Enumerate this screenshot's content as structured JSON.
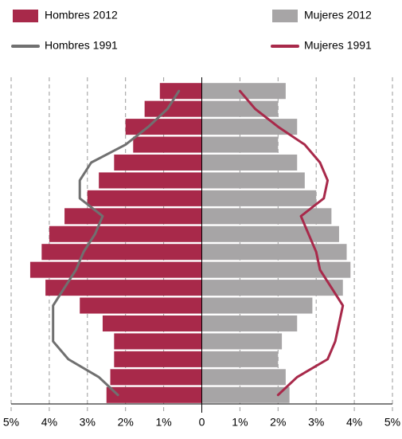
{
  "chart_data": {
    "type": "bar",
    "orientation": "horizontal",
    "categories": [
      null,
      null,
      null,
      null,
      null,
      null,
      null,
      null,
      null,
      null,
      null,
      null,
      null,
      null,
      null,
      null,
      null,
      null
    ],
    "series": [
      {
        "name": "Hombres 2012",
        "type": "bar",
        "color": "#a8294a",
        "values": [
          -1.1,
          -1.5,
          -2.0,
          -1.8,
          -2.3,
          -2.7,
          -3.0,
          -3.6,
          -4.0,
          -4.2,
          -4.5,
          -4.1,
          -3.2,
          -2.6,
          -2.3,
          -2.3,
          -2.4,
          -2.5
        ]
      },
      {
        "name": "Mujeres 2012",
        "type": "bar",
        "color": "#a7a5a6",
        "values": [
          2.2,
          2.0,
          2.5,
          2.0,
          2.5,
          2.7,
          3.0,
          3.4,
          3.6,
          3.8,
          3.9,
          3.7,
          2.9,
          2.5,
          2.1,
          2.0,
          2.2,
          2.3
        ]
      },
      {
        "name": "Hombres 1991",
        "type": "line",
        "color": "#707070",
        "values": [
          -0.6,
          -0.9,
          -1.4,
          -2.0,
          -2.9,
          -3.2,
          -3.2,
          -2.6,
          -2.8,
          -3.1,
          -3.3,
          -3.6,
          -3.9,
          -3.9,
          -3.9,
          -3.5,
          -2.7,
          -2.2
        ]
      },
      {
        "name": "Mujeres 1991",
        "type": "line",
        "color": "#a8294a",
        "values": [
          1.0,
          1.4,
          2.0,
          2.7,
          3.1,
          3.3,
          3.2,
          2.6,
          2.8,
          3.0,
          3.1,
          3.4,
          3.7,
          3.6,
          3.5,
          3.3,
          2.5,
          2.0
        ]
      }
    ],
    "xlim": [
      -5,
      5
    ],
    "xticks": [
      {
        "value": -5,
        "label": "5%"
      },
      {
        "value": -4,
        "label": "4%"
      },
      {
        "value": -3,
        "label": "3%"
      },
      {
        "value": -2,
        "label": "2%"
      },
      {
        "value": -1,
        "label": "1%"
      },
      0,
      {
        "value": 1,
        "label": "1%"
      },
      {
        "value": 2,
        "label": "2%"
      },
      {
        "value": 3,
        "label": "3%"
      },
      {
        "value": 4,
        "label": "4%"
      },
      {
        "value": 5,
        "label": "5%"
      }
    ],
    "grid": true,
    "legend": "top"
  }
}
